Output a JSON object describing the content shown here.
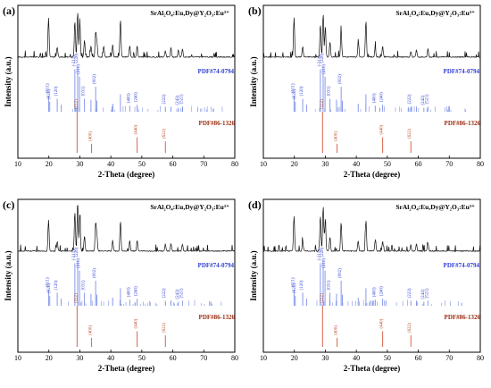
{
  "colors": {
    "pattern": "#111111",
    "ref_blue": "#7b8ee8",
    "ref_blue_label": "#2f3fd0",
    "ref_red": "#d2553a",
    "ref_red_label": "#9a2c10",
    "sample_label": "#000000",
    "frame": "#000000"
  },
  "chart_data": [
    {
      "type": "line",
      "panel": "(a)",
      "sample_label": "SrAl₂O₄:Eu,Dy@Y₂O₃:Eu³⁺",
      "xlabel": "2-Theta (degree)",
      "ylabel": "Intensity (a.u.)",
      "xlim": [
        10,
        80
      ],
      "x_ticks": [
        10,
        20,
        30,
        40,
        50,
        60,
        70,
        80
      ],
      "grid": false,
      "experimental_peaks": [
        [
          19.9,
          0.78
        ],
        [
          22.7,
          0.2
        ],
        [
          28.4,
          0.72
        ],
        [
          29.3,
          0.92
        ],
        [
          30.0,
          0.68
        ],
        [
          31.5,
          0.34
        ],
        [
          33.6,
          0.22
        ],
        [
          35.1,
          0.5
        ],
        [
          35.5,
          0.3
        ],
        [
          37.7,
          0.22
        ],
        [
          40.6,
          0.24
        ],
        [
          43.1,
          0.75
        ],
        [
          46.1,
          0.22
        ],
        [
          48.5,
          0.22
        ],
        [
          57.6,
          0.12
        ],
        [
          59.4,
          0.18
        ],
        [
          61.8,
          0.14
        ],
        [
          63.1,
          0.16
        ]
      ],
      "reference_series": [
        {
          "name": "PDF#74-0794",
          "peaks": [
            [
              19.9,
              0.32
            ],
            [
              20.3,
              0.2
            ],
            [
              22.7,
              0.26
            ],
            [
              24.0,
              0.14
            ],
            [
              28.4,
              0.85
            ],
            [
              29.3,
              0.92
            ],
            [
              29.9,
              0.7
            ],
            [
              31.5,
              0.26
            ],
            [
              33.6,
              0.24
            ],
            [
              35.1,
              0.5
            ],
            [
              35.5,
              0.22
            ],
            [
              40.6,
              0.16
            ],
            [
              43.1,
              0.35
            ],
            [
              46.1,
              0.12
            ],
            [
              48.5,
              0.14
            ],
            [
              57.6,
              0.1
            ],
            [
              59.4,
              0.1
            ],
            [
              61.8,
              0.08
            ],
            [
              63.1,
              0.1
            ]
          ],
          "hkl_labels": [
            "(011)",
            "(020)",
            "(120)",
            "(-211)",
            "(220)",
            "(211)",
            "(031)",
            "(002)",
            "(400)",
            "(240)",
            "(222)",
            "(242)",
            "(521)"
          ]
        },
        {
          "name": "PDF#86-1326",
          "peaks": [
            [
              29.1,
              1.0
            ],
            [
              33.8,
              0.22
            ],
            [
              48.5,
              0.38
            ],
            [
              57.6,
              0.28
            ]
          ],
          "hkl_labels": [
            "(222)",
            "(400)",
            "(440)",
            "(622)"
          ]
        }
      ]
    },
    {
      "type": "line",
      "panel": "(b)",
      "sample_label": "SrAl₂O₄:Eu,Dy@Y₂O₃:Eu³⁺",
      "xlabel": "2-Theta (degree)",
      "ylabel": "Intensity (a.u.)",
      "xlim": [
        10,
        80
      ],
      "x_ticks": [
        10,
        20,
        30,
        40,
        50,
        60,
        70,
        80
      ],
      "grid": false,
      "experimental_peaks": [
        [
          19.9,
          0.78
        ],
        [
          22.7,
          0.2
        ],
        [
          28.4,
          0.66
        ],
        [
          29.3,
          0.88
        ],
        [
          30.0,
          0.62
        ],
        [
          31.5,
          0.3
        ],
        [
          35.1,
          0.52
        ],
        [
          40.6,
          0.24
        ],
        [
          43.1,
          0.72
        ],
        [
          46.1,
          0.2
        ],
        [
          48.5,
          0.22
        ],
        [
          57.6,
          0.1
        ],
        [
          59.4,
          0.14
        ],
        [
          63.1,
          0.16
        ]
      ],
      "reference_series": [
        {
          "name": "PDF#74-0794",
          "peaks": [
            [
              19.9,
              0.32
            ],
            [
              20.3,
              0.2
            ],
            [
              22.7,
              0.26
            ],
            [
              24.0,
              0.14
            ],
            [
              28.4,
              0.85
            ],
            [
              29.3,
              0.92
            ],
            [
              29.9,
              0.7
            ],
            [
              31.5,
              0.26
            ],
            [
              33.6,
              0.24
            ],
            [
              35.1,
              0.5
            ],
            [
              35.5,
              0.22
            ],
            [
              40.6,
              0.16
            ],
            [
              43.1,
              0.35
            ],
            [
              46.1,
              0.12
            ],
            [
              48.5,
              0.14
            ],
            [
              57.6,
              0.1
            ],
            [
              59.4,
              0.1
            ],
            [
              61.8,
              0.08
            ],
            [
              63.1,
              0.1
            ]
          ],
          "hkl_labels": [
            "(011)",
            "(020)",
            "(120)",
            "(-211)",
            "(220)",
            "(211)",
            "(031)",
            "(002)",
            "(400)",
            "(240)",
            "(222)",
            "(242)",
            "(521)"
          ]
        },
        {
          "name": "PDF#86-1326",
          "peaks": [
            [
              29.1,
              1.0
            ],
            [
              33.8,
              0.22
            ],
            [
              48.5,
              0.38
            ],
            [
              57.6,
              0.28
            ]
          ],
          "hkl_labels": [
            "(222)",
            "(400)",
            "(440)",
            "(622)"
          ]
        }
      ]
    },
    {
      "type": "line",
      "panel": "(c)",
      "sample_label": "SrAl₂O₄:Eu,Dy@Y₂O₃:Eu³⁺",
      "xlabel": "2-Theta (degree)",
      "ylabel": "Intensity (a.u.)",
      "xlim": [
        10,
        80
      ],
      "x_ticks": [
        10,
        20,
        30,
        40,
        50,
        60,
        70,
        80
      ],
      "grid": false,
      "experimental_peaks": [
        [
          19.9,
          0.62
        ],
        [
          22.7,
          0.18
        ],
        [
          28.4,
          0.78
        ],
        [
          29.3,
          0.95
        ],
        [
          30.0,
          0.74
        ],
        [
          31.5,
          0.3
        ],
        [
          35.1,
          0.56
        ],
        [
          35.5,
          0.32
        ],
        [
          40.6,
          0.22
        ],
        [
          43.1,
          0.6
        ],
        [
          46.1,
          0.2
        ],
        [
          48.5,
          0.22
        ],
        [
          57.6,
          0.14
        ],
        [
          59.4,
          0.16
        ],
        [
          63.1,
          0.14
        ]
      ],
      "reference_series": [
        {
          "name": "PDF#74-0794",
          "peaks": [
            [
              19.9,
              0.32
            ],
            [
              20.3,
              0.2
            ],
            [
              22.7,
              0.26
            ],
            [
              24.0,
              0.14
            ],
            [
              28.4,
              0.85
            ],
            [
              29.3,
              0.92
            ],
            [
              29.9,
              0.7
            ],
            [
              31.5,
              0.26
            ],
            [
              33.6,
              0.24
            ],
            [
              35.1,
              0.5
            ],
            [
              35.5,
              0.22
            ],
            [
              40.6,
              0.16
            ],
            [
              43.1,
              0.35
            ],
            [
              46.1,
              0.12
            ],
            [
              48.5,
              0.14
            ],
            [
              57.6,
              0.1
            ],
            [
              59.4,
              0.1
            ],
            [
              61.8,
              0.08
            ],
            [
              63.1,
              0.1
            ]
          ],
          "hkl_labels": [
            "(011)",
            "(020)",
            "(120)",
            "(-211)",
            "(220)",
            "(211)",
            "(031)",
            "(002)",
            "(400)",
            "(240)",
            "(222)",
            "(242)",
            "(521)"
          ]
        },
        {
          "name": "PDF#86-1326",
          "peaks": [
            [
              29.1,
              1.0
            ],
            [
              33.8,
              0.22
            ],
            [
              48.5,
              0.38
            ],
            [
              57.6,
              0.28
            ]
          ],
          "hkl_labels": [
            "(222)",
            "(400)",
            "(440)",
            "(622)"
          ]
        }
      ]
    },
    {
      "type": "line",
      "panel": "(d)",
      "sample_label": "SrAl₂O₄:Eu,Dy@Y₂O₃:Eu³⁺",
      "xlabel": "2-Theta (degree)",
      "ylabel": "Intensity (a.u.)",
      "xlim": [
        10,
        80
      ],
      "x_ticks": [
        10,
        20,
        30,
        40,
        50,
        60,
        70,
        80
      ],
      "grid": false,
      "experimental_peaks": [
        [
          19.9,
          0.7
        ],
        [
          22.7,
          0.18
        ],
        [
          28.4,
          0.7
        ],
        [
          29.3,
          0.9
        ],
        [
          30.0,
          0.66
        ],
        [
          31.5,
          0.28
        ],
        [
          35.1,
          0.58
        ],
        [
          40.6,
          0.2
        ],
        [
          43.1,
          0.62
        ],
        [
          46.1,
          0.22
        ],
        [
          48.5,
          0.2
        ],
        [
          57.6,
          0.12
        ],
        [
          59.4,
          0.14
        ],
        [
          63.1,
          0.16
        ]
      ],
      "reference_series": [
        {
          "name": "PDF#74-0794",
          "peaks": [
            [
              19.9,
              0.32
            ],
            [
              20.3,
              0.2
            ],
            [
              22.7,
              0.26
            ],
            [
              24.0,
              0.14
            ],
            [
              28.4,
              0.85
            ],
            [
              29.3,
              0.92
            ],
            [
              29.9,
              0.7
            ],
            [
              31.5,
              0.26
            ],
            [
              33.6,
              0.24
            ],
            [
              35.1,
              0.5
            ],
            [
              35.5,
              0.22
            ],
            [
              40.6,
              0.16
            ],
            [
              43.1,
              0.35
            ],
            [
              46.1,
              0.12
            ],
            [
              48.5,
              0.14
            ],
            [
              57.6,
              0.1
            ],
            [
              59.4,
              0.1
            ],
            [
              61.8,
              0.08
            ],
            [
              63.1,
              0.1
            ]
          ],
          "hkl_labels": [
            "(011)",
            "(020)",
            "(120)",
            "(-211)",
            "(220)",
            "(211)",
            "(031)",
            "(002)",
            "(400)",
            "(240)",
            "(222)",
            "(242)",
            "(521)"
          ]
        },
        {
          "name": "PDF#86-1326",
          "peaks": [
            [
              29.1,
              1.0
            ],
            [
              33.8,
              0.22
            ],
            [
              48.5,
              0.38
            ],
            [
              57.6,
              0.28
            ]
          ],
          "hkl_labels": [
            "(222)",
            "(400)",
            "(440)",
            "(622)"
          ]
        }
      ]
    }
  ]
}
